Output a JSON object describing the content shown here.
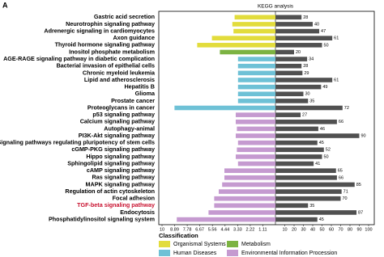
{
  "panel_label": "A",
  "chart_data": {
    "type": "diverging-bar",
    "title": "KEGG analysis",
    "categories": [
      "Gastric acid secretion",
      "Neurotrophin signaling pathway",
      "Adrenergic signaling in cardiomyocytes",
      "Axon guidance",
      "Thyroid hormone signaling pathway",
      "Inositol phosphate metabolism",
      "AGE-RAGE signaling pathway in diabetic complication",
      "Bacterial invasion of epithelial cells",
      "Chronic myeloid leukemia",
      "Lipid and atherosclerosis",
      "Hepatitis B",
      "Glioma",
      "Prostate cancer",
      "Proteoglycans in cancer",
      "p53 signaling pathway",
      "Calcium signaling pathway",
      "Autophagy-animal",
      "PI3K-Akt signaling pathway",
      "Signaling pathways regulating pluripotency of stem cells",
      "cGMP-PKG signaling pathway",
      "Hippo signaling pathway",
      "Sphingolipid signaling pathway",
      "cAMP signaling pathway",
      "Ras signaling pathway",
      "MAPK signaling pathway",
      "Regulation of actin cytoskeleton",
      "Focal adhesion",
      "TGF-beta signaling pathway",
      "Endocytosis",
      "Phosphatidylinositol signaling system"
    ],
    "row_class": [
      0,
      0,
      0,
      0,
      0,
      1,
      2,
      2,
      2,
      2,
      2,
      2,
      2,
      2,
      3,
      3,
      3,
      3,
      3,
      3,
      3,
      3,
      3,
      3,
      3,
      3,
      3,
      3,
      3,
      3
    ],
    "left_values": [
      3.6,
      3.8,
      3.7,
      5.6,
      6.9,
      4.9,
      3.3,
      3.3,
      3.3,
      3.3,
      3.3,
      3.3,
      3.3,
      8.9,
      3.5,
      3.5,
      3.4,
      3.5,
      3.3,
      3.4,
      3.5,
      3.3,
      4.5,
      4.5,
      4.7,
      5.0,
      5.4,
      5.4,
      5.9,
      8.7
    ],
    "right_values": [
      28,
      40,
      47,
      61,
      50,
      20,
      34,
      28,
      29,
      61,
      49,
      30,
      35,
      72,
      27,
      66,
      46,
      90,
      45,
      52,
      50,
      41,
      65,
      66,
      85,
      71,
      70,
      35,
      87,
      45
    ],
    "right_color": "#505050",
    "left_xlim": [
      0,
      10
    ],
    "left_xticks": [
      10,
      8.89,
      7.78,
      6.67,
      5.56,
      4.44,
      3.33,
      2.22,
      1.11
    ],
    "right_xlim": [
      0,
      100
    ],
    "right_xticks": [
      10,
      20,
      30,
      40,
      50,
      60,
      70,
      80,
      90,
      100
    ],
    "highlight": {
      "index": 27,
      "color": "#c8102e"
    },
    "legend_title": "Classification",
    "classes": [
      {
        "name": "Organismal Systems",
        "color": "#e2dc3c"
      },
      {
        "name": "Metabolism",
        "color": "#7cb342"
      },
      {
        "name": "Human Diseases",
        "color": "#6ec1d6"
      },
      {
        "name": "Environmental Information Procession",
        "color": "#c59ad0"
      }
    ]
  }
}
